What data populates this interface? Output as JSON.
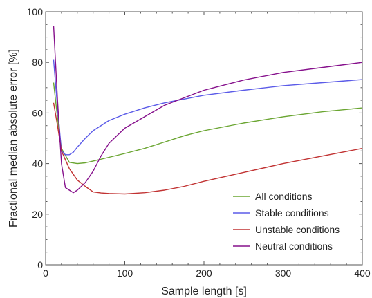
{
  "chart_data": {
    "type": "line",
    "title": "",
    "xlabel": "Sample length [s]",
    "ylabel": "Fractional median absolute error [%]",
    "xlim": [
      0,
      400
    ],
    "ylim": [
      0,
      100
    ],
    "x_ticks": [
      0,
      100,
      200,
      300,
      400
    ],
    "y_ticks": [
      0,
      20,
      40,
      60,
      80,
      100
    ],
    "x_tick_labels": [
      "0",
      "100",
      "200",
      "300",
      "400"
    ],
    "y_tick_labels": [
      "0",
      "20",
      "40",
      "60",
      "80",
      "100"
    ],
    "grid": false,
    "legend_position": "bottom-right",
    "series": [
      {
        "name": "All conditions",
        "color": "#6aa531",
        "x": [
          10,
          15,
          20,
          30,
          40,
          50,
          60,
          80,
          100,
          125,
          150,
          175,
          200,
          250,
          300,
          350,
          400
        ],
        "y": [
          72,
          58,
          46,
          40.5,
          40,
          40.3,
          41,
          42.5,
          44,
          46,
          48.5,
          51,
          53,
          56,
          58.5,
          60.5,
          62
        ]
      },
      {
        "name": "Stable conditions",
        "color": "#5b5be8",
        "x": [
          10,
          15,
          20,
          25,
          30,
          35,
          40,
          50,
          60,
          80,
          100,
          125,
          150,
          175,
          200,
          250,
          300,
          350,
          400
        ],
        "y": [
          81,
          62,
          45,
          43.5,
          43.5,
          44.5,
          46.5,
          50,
          53,
          57,
          59.5,
          62,
          64,
          65.5,
          67,
          69,
          70.8,
          72,
          73.2
        ]
      },
      {
        "name": "Unstable conditions",
        "color": "#c13232",
        "x": [
          10,
          15,
          20,
          25,
          30,
          40,
          50,
          60,
          70,
          80,
          100,
          125,
          150,
          175,
          200,
          250,
          300,
          350,
          400
        ],
        "y": [
          64,
          55,
          45,
          41.5,
          38,
          33.5,
          31,
          28.8,
          28.4,
          28.2,
          28,
          28.5,
          29.5,
          31,
          33,
          36.5,
          40,
          43,
          46
        ]
      },
      {
        "name": "Neutral conditions",
        "color": "#86108c",
        "x": [
          10,
          15,
          20,
          25,
          30,
          35,
          40,
          50,
          60,
          70,
          80,
          100,
          125,
          150,
          175,
          200,
          250,
          300,
          350,
          400
        ],
        "y": [
          94.5,
          65,
          40,
          30.5,
          29.5,
          28.5,
          29.5,
          32.5,
          37,
          43,
          48,
          54,
          58.5,
          63,
          66,
          69,
          73,
          76,
          78,
          80
        ]
      }
    ]
  }
}
